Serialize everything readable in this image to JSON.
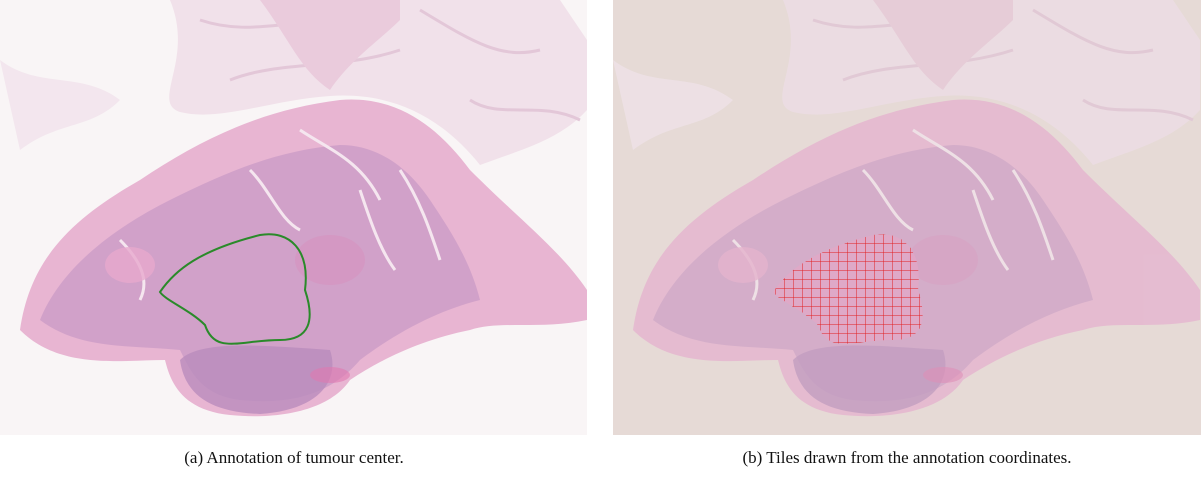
{
  "figures": [
    {
      "caption": "(a) Annotation of tumour center."
    },
    {
      "caption": "(b) Tiles drawn from the annotation coordinates."
    }
  ]
}
